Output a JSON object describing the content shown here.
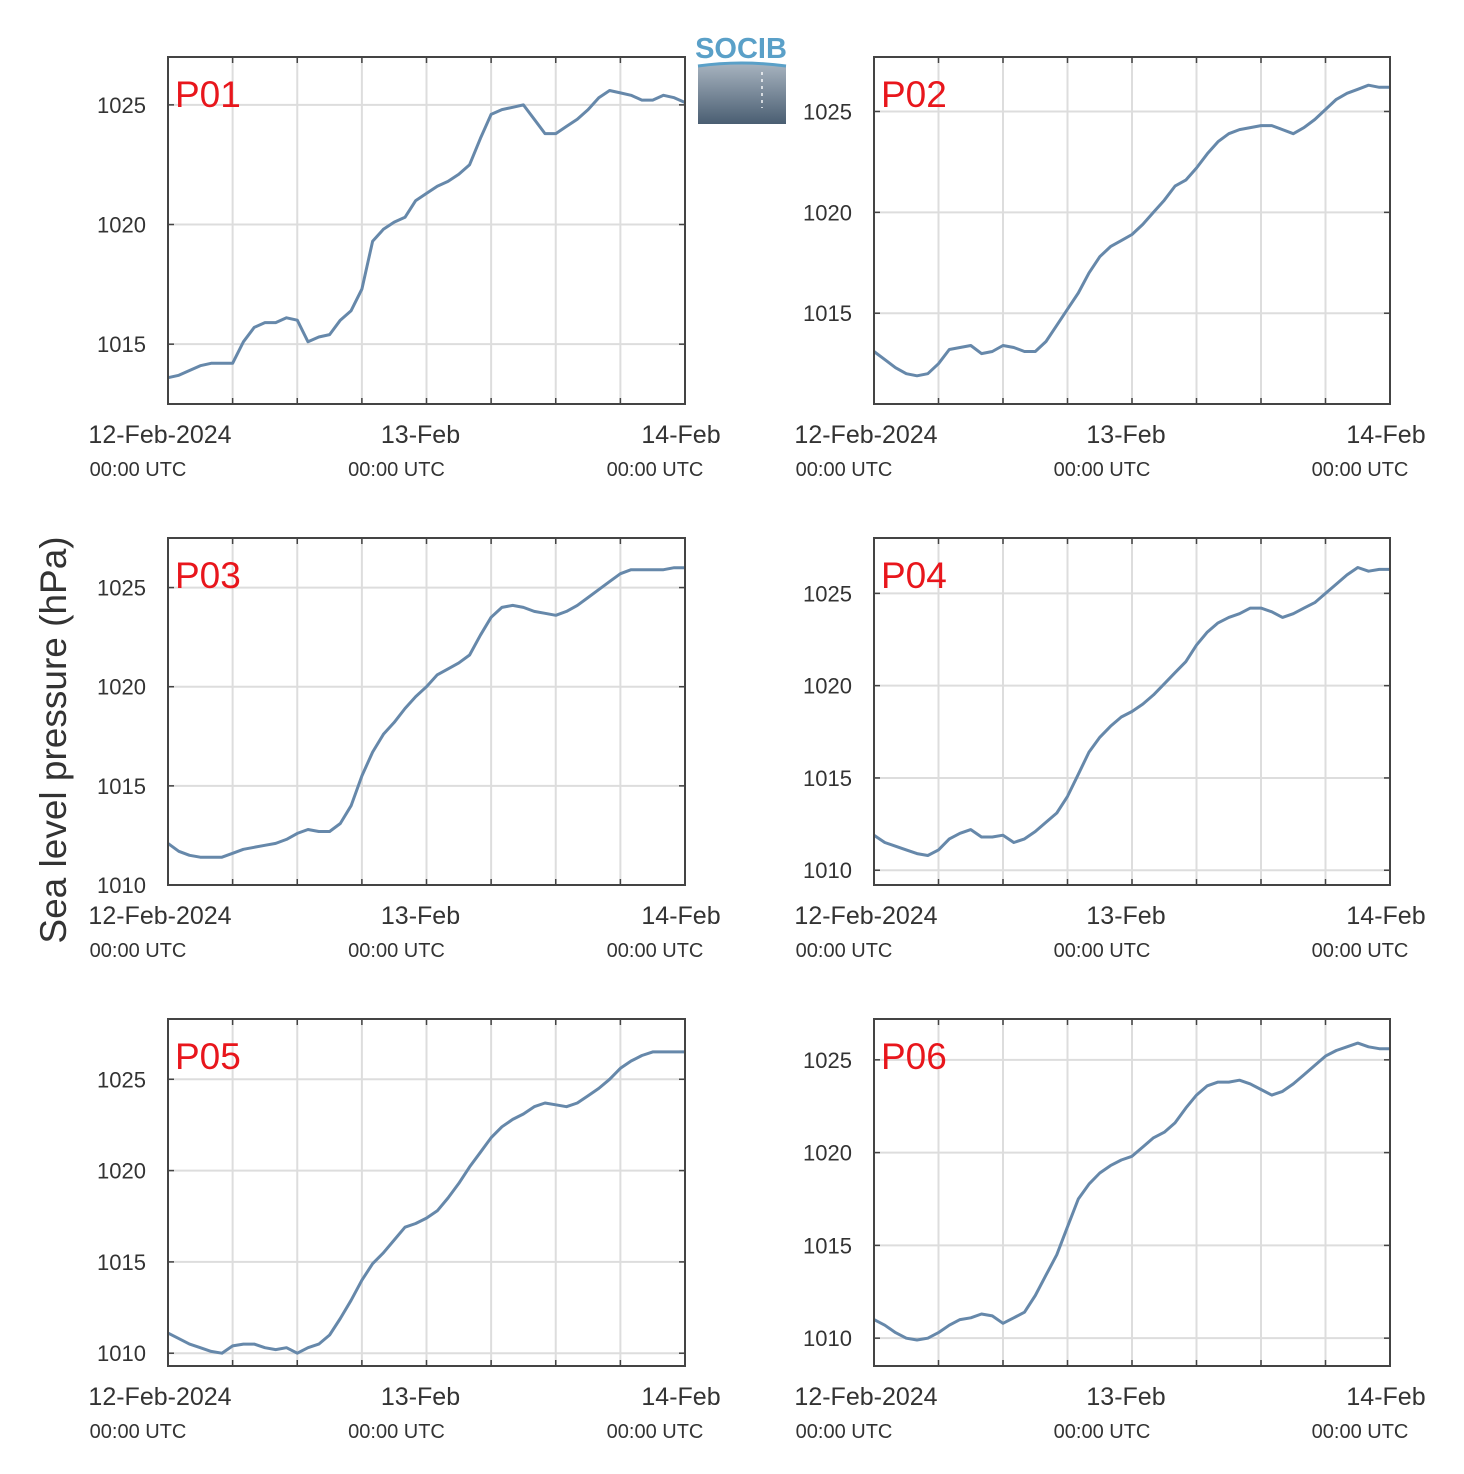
{
  "logo": {
    "text": "SOCIB",
    "color": "#5aa0c8"
  },
  "colors": {
    "line": "#6688aa",
    "panel_label": "#e8161c",
    "grid": "#dddddd",
    "axis": "#444444",
    "text": "#333333"
  },
  "chart_data": [
    {
      "type": "line",
      "label": "P01",
      "xlabels": [
        {
          "date": "12-Feb-2024",
          "time": "00:00 UTC"
        },
        {
          "date": "13-Feb",
          "time": "00:00 UTC"
        },
        {
          "date": "14-Feb",
          "time": "00:00 UTC"
        }
      ],
      "xlim": [
        0,
        48
      ],
      "ylim": [
        1012.5,
        1027
      ],
      "yticks": [
        1015,
        1020,
        1025
      ],
      "x": [
        0,
        1,
        2,
        3,
        4,
        5,
        6,
        7,
        8,
        9,
        10,
        11,
        12,
        13,
        14,
        15,
        16,
        17,
        18,
        19,
        20,
        21,
        22,
        23,
        24,
        25,
        26,
        27,
        28,
        29,
        30,
        31,
        32,
        33,
        34,
        35,
        36,
        37,
        38,
        39,
        40,
        41,
        42,
        43,
        44,
        45,
        46,
        47,
        48
      ],
      "y": [
        1013.6,
        1013.7,
        1013.9,
        1014.1,
        1014.2,
        1014.2,
        1014.2,
        1015.1,
        1015.7,
        1015.9,
        1015.9,
        1016.1,
        1016.0,
        1015.1,
        1015.3,
        1015.4,
        1016.0,
        1016.4,
        1017.3,
        1019.3,
        1019.8,
        1020.1,
        1020.3,
        1021.0,
        1021.3,
        1021.6,
        1021.8,
        1022.1,
        1022.5,
        1023.6,
        1024.6,
        1024.8,
        1024.9,
        1025.0,
        1024.4,
        1023.8,
        1023.8,
        1024.1,
        1024.4,
        1024.8,
        1025.3,
        1025.6,
        1025.5,
        1025.4,
        1025.2,
        1025.2,
        1025.4,
        1025.3,
        1025.1
      ]
    },
    {
      "type": "line",
      "label": "P02",
      "xlabels": [
        {
          "date": "12-Feb-2024",
          "time": "00:00 UTC"
        },
        {
          "date": "13-Feb",
          "time": "00:00 UTC"
        },
        {
          "date": "14-Feb",
          "time": "00:00 UTC"
        }
      ],
      "xlim": [
        0,
        48
      ],
      "ylim": [
        1010.5,
        1027.7
      ],
      "yticks": [
        1015,
        1020,
        1025
      ],
      "x": [
        0,
        1,
        2,
        3,
        4,
        5,
        6,
        7,
        8,
        9,
        10,
        11,
        12,
        13,
        14,
        15,
        16,
        17,
        18,
        19,
        20,
        21,
        22,
        23,
        24,
        25,
        26,
        27,
        28,
        29,
        30,
        31,
        32,
        33,
        34,
        35,
        36,
        37,
        38,
        39,
        40,
        41,
        42,
        43,
        44,
        45,
        46,
        47,
        48
      ],
      "y": [
        1013.1,
        1012.7,
        1012.3,
        1012.0,
        1011.9,
        1012.0,
        1012.5,
        1013.2,
        1013.3,
        1013.4,
        1013.0,
        1013.1,
        1013.4,
        1013.3,
        1013.1,
        1013.1,
        1013.6,
        1014.4,
        1015.2,
        1016.0,
        1017.0,
        1017.8,
        1018.3,
        1018.6,
        1018.9,
        1019.4,
        1020.0,
        1020.6,
        1021.3,
        1021.6,
        1022.2,
        1022.9,
        1023.5,
        1023.9,
        1024.1,
        1024.2,
        1024.3,
        1024.3,
        1024.1,
        1023.9,
        1024.2,
        1024.6,
        1025.1,
        1025.6,
        1025.9,
        1026.1,
        1026.3,
        1026.2,
        1026.2
      ]
    },
    {
      "type": "line",
      "label": "P03",
      "xlabels": [
        {
          "date": "12-Feb-2024",
          "time": "00:00 UTC"
        },
        {
          "date": "13-Feb",
          "time": "00:00 UTC"
        },
        {
          "date": "14-Feb",
          "time": "00:00 UTC"
        }
      ],
      "xlim": [
        0,
        48
      ],
      "ylim": [
        1010,
        1027.5
      ],
      "yticks": [
        1010,
        1015,
        1020,
        1025
      ],
      "x": [
        0,
        1,
        2,
        3,
        4,
        5,
        6,
        7,
        8,
        9,
        10,
        11,
        12,
        13,
        14,
        15,
        16,
        17,
        18,
        19,
        20,
        21,
        22,
        23,
        24,
        25,
        26,
        27,
        28,
        29,
        30,
        31,
        32,
        33,
        34,
        35,
        36,
        37,
        38,
        39,
        40,
        41,
        42,
        43,
        44,
        45,
        46,
        47,
        48
      ],
      "y": [
        1012.1,
        1011.7,
        1011.5,
        1011.4,
        1011.4,
        1011.4,
        1011.6,
        1011.8,
        1011.9,
        1012.0,
        1012.1,
        1012.3,
        1012.6,
        1012.8,
        1012.7,
        1012.7,
        1013.1,
        1014.0,
        1015.5,
        1016.7,
        1017.6,
        1018.2,
        1018.9,
        1019.5,
        1020.0,
        1020.6,
        1020.9,
        1021.2,
        1021.6,
        1022.6,
        1023.5,
        1024.0,
        1024.1,
        1024.0,
        1023.8,
        1023.7,
        1023.6,
        1023.8,
        1024.1,
        1024.5,
        1024.9,
        1025.3,
        1025.7,
        1025.9,
        1025.9,
        1025.9,
        1025.9,
        1026.0,
        1026.0
      ]
    },
    {
      "type": "line",
      "label": "P04",
      "xlabels": [
        {
          "date": "12-Feb-2024",
          "time": "00:00 UTC"
        },
        {
          "date": "13-Feb",
          "time": "00:00 UTC"
        },
        {
          "date": "14-Feb",
          "time": "00:00 UTC"
        }
      ],
      "xlim": [
        0,
        48
      ],
      "ylim": [
        1009.2,
        1028
      ],
      "yticks": [
        1010,
        1015,
        1020,
        1025
      ],
      "x": [
        0,
        1,
        2,
        3,
        4,
        5,
        6,
        7,
        8,
        9,
        10,
        11,
        12,
        13,
        14,
        15,
        16,
        17,
        18,
        19,
        20,
        21,
        22,
        23,
        24,
        25,
        26,
        27,
        28,
        29,
        30,
        31,
        32,
        33,
        34,
        35,
        36,
        37,
        38,
        39,
        40,
        41,
        42,
        43,
        44,
        45,
        46,
        47,
        48
      ],
      "y": [
        1011.9,
        1011.5,
        1011.3,
        1011.1,
        1010.9,
        1010.8,
        1011.1,
        1011.7,
        1012.0,
        1012.2,
        1011.8,
        1011.8,
        1011.9,
        1011.5,
        1011.7,
        1012.1,
        1012.6,
        1013.1,
        1014.0,
        1015.2,
        1016.4,
        1017.2,
        1017.8,
        1018.3,
        1018.6,
        1019.0,
        1019.5,
        1020.1,
        1020.7,
        1021.3,
        1022.2,
        1022.9,
        1023.4,
        1023.7,
        1023.9,
        1024.2,
        1024.2,
        1024.0,
        1023.7,
        1023.9,
        1024.2,
        1024.5,
        1025.0,
        1025.5,
        1026.0,
        1026.4,
        1026.2,
        1026.3,
        1026.3
      ]
    },
    {
      "type": "line",
      "label": "P05",
      "xlabels": [
        {
          "date": "12-Feb-2024",
          "time": "00:00 UTC"
        },
        {
          "date": "13-Feb",
          "time": "00:00 UTC"
        },
        {
          "date": "14-Feb",
          "time": "00:00 UTC"
        }
      ],
      "xlim": [
        0,
        48
      ],
      "ylim": [
        1009.3,
        1028.3
      ],
      "yticks": [
        1010,
        1015,
        1020,
        1025
      ],
      "x": [
        0,
        1,
        2,
        3,
        4,
        5,
        6,
        7,
        8,
        9,
        10,
        11,
        12,
        13,
        14,
        15,
        16,
        17,
        18,
        19,
        20,
        21,
        22,
        23,
        24,
        25,
        26,
        27,
        28,
        29,
        30,
        31,
        32,
        33,
        34,
        35,
        36,
        37,
        38,
        39,
        40,
        41,
        42,
        43,
        44,
        45,
        46,
        47,
        48
      ],
      "y": [
        1011.1,
        1010.8,
        1010.5,
        1010.3,
        1010.1,
        1010.0,
        1010.4,
        1010.5,
        1010.5,
        1010.3,
        1010.2,
        1010.3,
        1010.0,
        1010.3,
        1010.5,
        1011.0,
        1011.9,
        1012.9,
        1014.0,
        1014.9,
        1015.5,
        1016.2,
        1016.9,
        1017.1,
        1017.4,
        1017.8,
        1018.5,
        1019.3,
        1020.2,
        1021.0,
        1021.8,
        1022.4,
        1022.8,
        1023.1,
        1023.5,
        1023.7,
        1023.6,
        1023.5,
        1023.7,
        1024.1,
        1024.5,
        1025.0,
        1025.6,
        1026.0,
        1026.3,
        1026.5,
        1026.5,
        1026.5,
        1026.5
      ]
    },
    {
      "type": "line",
      "label": "P06",
      "xlabels": [
        {
          "date": "12-Feb-2024",
          "time": "00:00 UTC"
        },
        {
          "date": "13-Feb",
          "time": "00:00 UTC"
        },
        {
          "date": "14-Feb",
          "time": "00:00 UTC"
        }
      ],
      "xlim": [
        0,
        48
      ],
      "ylim": [
        1008.5,
        1027.2
      ],
      "yticks": [
        1010,
        1015,
        1020,
        1025
      ],
      "x": [
        0,
        1,
        2,
        3,
        4,
        5,
        6,
        7,
        8,
        9,
        10,
        11,
        12,
        13,
        14,
        15,
        16,
        17,
        18,
        19,
        20,
        21,
        22,
        23,
        24,
        25,
        26,
        27,
        28,
        29,
        30,
        31,
        32,
        33,
        34,
        35,
        36,
        37,
        38,
        39,
        40,
        41,
        42,
        43,
        44,
        45,
        46,
        47,
        48
      ],
      "y": [
        1011.0,
        1010.7,
        1010.3,
        1010.0,
        1009.9,
        1010.0,
        1010.3,
        1010.7,
        1011.0,
        1011.1,
        1011.3,
        1011.2,
        1010.8,
        1011.1,
        1011.4,
        1012.3,
        1013.4,
        1014.5,
        1016.0,
        1017.5,
        1018.3,
        1018.9,
        1019.3,
        1019.6,
        1019.8,
        1020.3,
        1020.8,
        1021.1,
        1021.6,
        1022.4,
        1023.1,
        1023.6,
        1023.8,
        1023.8,
        1023.9,
        1023.7,
        1023.4,
        1023.1,
        1023.3,
        1023.7,
        1024.2,
        1024.7,
        1025.2,
        1025.5,
        1025.7,
        1025.9,
        1025.7,
        1025.6,
        1025.6
      ]
    }
  ],
  "ylabel": "Sea level pressure (hPa)"
}
